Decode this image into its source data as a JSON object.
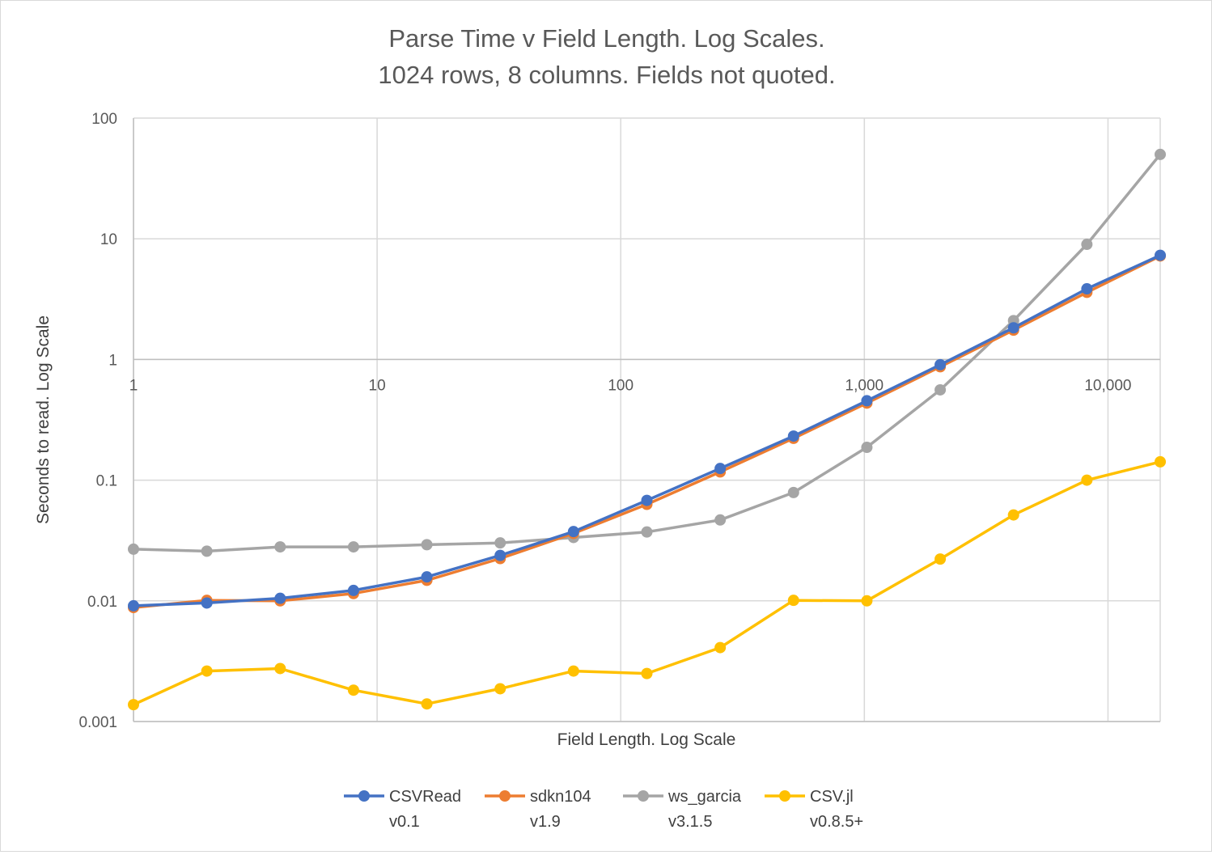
{
  "chart_data": {
    "type": "line",
    "title": "Parse Time v Field Length. Log Scales.",
    "subtitle": "1024 rows, 8 columns. Fields not quoted.",
    "xlabel": "Field Length. Log Scale",
    "ylabel": "Seconds to read. Log Scale",
    "x_scale": "log",
    "y_scale": "log",
    "xlim": [
      1,
      16384
    ],
    "ylim": [
      0.001,
      100
    ],
    "x_ticks": [
      1,
      10,
      100,
      1000,
      10000
    ],
    "x_tick_labels": [
      "1",
      "10",
      "100",
      "1,000",
      "10,000"
    ],
    "y_ticks": [
      0.001,
      0.01,
      0.1,
      1,
      10,
      100
    ],
    "y_tick_labels": [
      "0.001",
      "0.01",
      "0.1",
      "1",
      "10",
      "100"
    ],
    "grid": true,
    "legend_position": "bottom",
    "x": [
      1,
      2,
      4,
      8,
      16,
      32,
      64,
      128,
      256,
      512,
      1024,
      2048,
      4096,
      8192,
      16384
    ],
    "series": [
      {
        "name": "CSVRead",
        "version": "v0.1",
        "color": "#4472c4",
        "values": [
          0.0091,
          0.0096,
          0.0105,
          0.0122,
          0.0158,
          0.0238,
          0.0375,
          0.068,
          0.125,
          0.232,
          0.455,
          0.905,
          1.83,
          3.85,
          7.3
        ]
      },
      {
        "name": "sdkn104",
        "version": "v1.9",
        "color": "#ed7d31",
        "values": [
          0.0088,
          0.0101,
          0.01,
          0.0115,
          0.0148,
          0.0224,
          0.0362,
          0.063,
          0.117,
          0.222,
          0.435,
          0.87,
          1.75,
          3.6,
          7.2
        ]
      },
      {
        "name": "ws_garcia",
        "version": "v3.1.5",
        "color": "#a5a5a5",
        "values": [
          0.0268,
          0.0258,
          0.028,
          0.028,
          0.0292,
          0.0302,
          0.0335,
          0.0372,
          0.0468,
          0.079,
          0.187,
          0.56,
          2.1,
          9.0,
          50.0
        ]
      },
      {
        "name": "CSV.jl",
        "version": "v0.8.5+",
        "color": "#ffc000",
        "values": [
          0.00138,
          0.00262,
          0.00275,
          0.00182,
          0.0014,
          0.00187,
          0.00262,
          0.0025,
          0.0041,
          0.0101,
          0.01,
          0.0222,
          0.0515,
          0.1,
          0.142
        ]
      }
    ]
  }
}
